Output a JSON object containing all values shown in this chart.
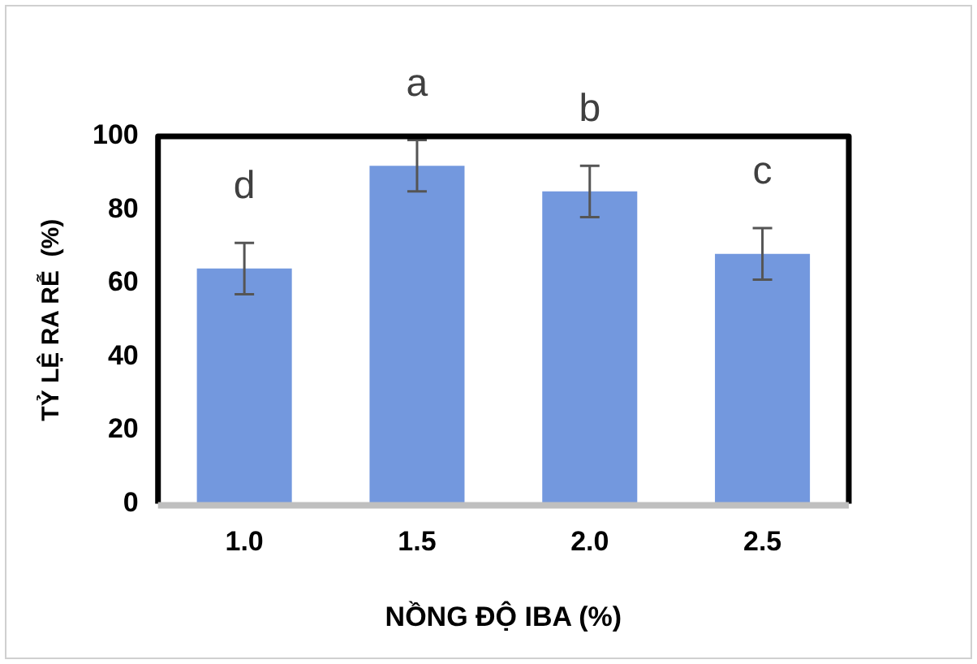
{
  "chart_data": {
    "type": "bar",
    "xlabel": "NỒNG ĐỘ IBA (%)",
    "ylabel": "TỶ LỆ RA RỄ  (%)",
    "categories": [
      "1.0",
      "1.5",
      "2.0",
      "2.5"
    ],
    "values": [
      64,
      92,
      85,
      68
    ],
    "errors": [
      7,
      7,
      7,
      7
    ],
    "color": "#7398de",
    "ylim": [
      0,
      100
    ],
    "yticks": [
      0,
      20,
      40,
      60,
      80,
      100
    ],
    "grid": false,
    "legend": false,
    "annotations": [
      {
        "text": "d",
        "x": "1.0",
        "y": 71
      },
      {
        "text": "a",
        "x": "1.5",
        "y": 99
      },
      {
        "text": "b",
        "x": "2.0",
        "y": 92
      },
      {
        "text": "c",
        "x": "2.5",
        "y": 75
      }
    ]
  }
}
